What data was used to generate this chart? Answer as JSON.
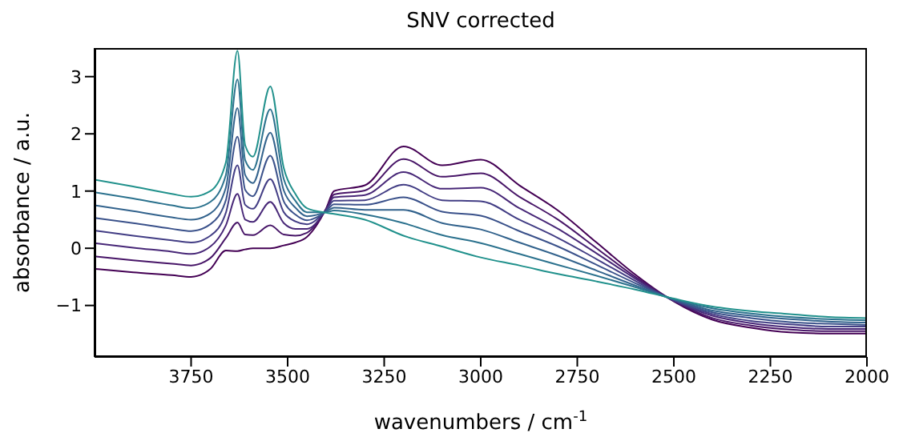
{
  "chart_data": {
    "type": "line",
    "title": "SNV corrected",
    "xlabel": "wavenumbers / cm$^{-1}$",
    "ylabel": "absorbance / a.u.",
    "x": [
      4000,
      3900,
      3800,
      3750,
      3700,
      3660,
      3630,
      3610,
      3590,
      3545,
      3510,
      3480,
      3450,
      3400,
      3380,
      3300,
      3200,
      3100,
      3000,
      2900,
      2800,
      2700,
      2600,
      2500,
      2400,
      2300,
      2200,
      2100,
      2000
    ],
    "xlim": [
      4000,
      2000
    ],
    "xticks": [
      3750,
      3500,
      3250,
      3000,
      2750,
      2500,
      2250,
      2000
    ],
    "ylim": [
      -1.9,
      3.5
    ],
    "yticks": [
      -1,
      0,
      1,
      2,
      3
    ],
    "grid": false,
    "marker": "none",
    "line_style": "solid",
    "series": [
      {
        "color": "#440154",
        "values": [
          -0.36,
          -0.42,
          -0.47,
          -0.5,
          -0.36,
          -0.04,
          -0.05,
          -0.02,
          0.0,
          0.0,
          0.05,
          0.1,
          0.2,
          0.7,
          1.0,
          1.1,
          1.78,
          1.45,
          1.55,
          1.1,
          0.66,
          0.1,
          -0.46,
          -0.93,
          -1.25,
          -1.39,
          -1.47,
          -1.49,
          -1.49
        ]
      },
      {
        "color": "#481668",
        "values": [
          -0.14,
          -0.21,
          -0.27,
          -0.3,
          -0.17,
          0.18,
          0.45,
          0.24,
          0.23,
          0.4,
          0.24,
          0.22,
          0.27,
          0.69,
          0.94,
          1.01,
          1.56,
          1.25,
          1.31,
          0.9,
          0.5,
          0.0,
          -0.5,
          -0.92,
          -1.22,
          -1.35,
          -1.42,
          -1.45,
          -1.45
        ]
      },
      {
        "color": "#482878",
        "values": [
          0.09,
          0.01,
          -0.06,
          -0.1,
          0.03,
          0.4,
          0.95,
          0.5,
          0.46,
          0.81,
          0.44,
          0.34,
          0.34,
          0.68,
          0.89,
          0.93,
          1.33,
          1.04,
          1.06,
          0.7,
          0.34,
          -0.09,
          -0.53,
          -0.92,
          -1.18,
          -1.31,
          -1.38,
          -1.41,
          -1.41
        ]
      },
      {
        "color": "#433e85",
        "values": [
          0.31,
          0.22,
          0.14,
          0.1,
          0.22,
          0.62,
          1.45,
          0.76,
          0.69,
          1.21,
          0.63,
          0.47,
          0.42,
          0.67,
          0.83,
          0.84,
          1.11,
          0.84,
          0.82,
          0.5,
          0.18,
          -0.19,
          -0.57,
          -0.91,
          -1.15,
          -1.27,
          -1.33,
          -1.37,
          -1.37
        ]
      },
      {
        "color": "#3b528b",
        "values": [
          0.53,
          0.44,
          0.34,
          0.3,
          0.42,
          0.84,
          1.95,
          1.02,
          0.91,
          1.62,
          0.82,
          0.59,
          0.49,
          0.65,
          0.77,
          0.76,
          0.89,
          0.64,
          0.57,
          0.3,
          0.03,
          -0.29,
          -0.61,
          -0.9,
          -1.12,
          -1.22,
          -1.29,
          -1.32,
          -1.34
        ]
      },
      {
        "color": "#33638d",
        "values": [
          0.75,
          0.65,
          0.54,
          0.5,
          0.61,
          1.06,
          2.45,
          1.28,
          1.14,
          2.02,
          1.01,
          0.71,
          0.56,
          0.64,
          0.71,
          0.67,
          0.67,
          0.44,
          0.33,
          0.1,
          -0.13,
          -0.39,
          -0.65,
          -0.89,
          -1.09,
          -1.18,
          -1.24,
          -1.28,
          -1.3
        ]
      },
      {
        "color": "#2c728e",
        "values": [
          0.98,
          0.87,
          0.75,
          0.7,
          0.81,
          1.28,
          2.95,
          1.54,
          1.37,
          2.43,
          1.21,
          0.83,
          0.63,
          0.63,
          0.66,
          0.59,
          0.44,
          0.23,
          0.09,
          -0.1,
          -0.29,
          -0.48,
          -0.68,
          -0.89,
          -1.05,
          -1.14,
          -1.2,
          -1.24,
          -1.26
        ]
      },
      {
        "color": "#21918c",
        "values": [
          1.2,
          1.08,
          0.95,
          0.9,
          1.0,
          1.5,
          3.45,
          1.8,
          1.6,
          2.83,
          1.4,
          0.95,
          0.7,
          0.62,
          0.6,
          0.5,
          0.22,
          0.03,
          -0.16,
          -0.3,
          -0.45,
          -0.58,
          -0.72,
          -0.88,
          -1.02,
          -1.1,
          -1.15,
          -1.2,
          -1.22
        ]
      }
    ]
  }
}
